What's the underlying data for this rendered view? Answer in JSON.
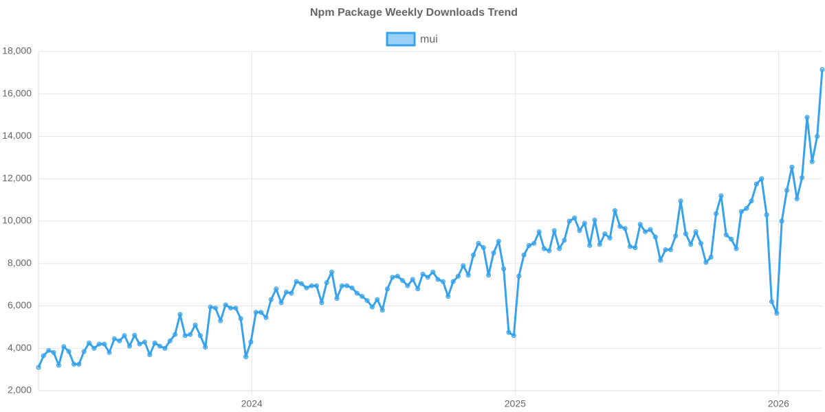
{
  "chart_data": {
    "type": "line",
    "title": "Npm Package Weekly Downloads Trend",
    "x": [
      2023.19,
      2023.2092,
      2023.2284,
      2023.2476,
      2023.2668,
      2023.286,
      2023.3052,
      2023.3244,
      2023.3436,
      2023.3628,
      2023.382,
      2023.4012,
      2023.4204,
      2023.4396,
      2023.4588,
      2023.478,
      2023.4972,
      2023.5164,
      2023.5356,
      2023.5548,
      2023.574,
      2023.5932,
      2023.6124,
      2023.6316,
      2023.6508,
      2023.67,
      2023.6892,
      2023.7084,
      2023.7276,
      2023.7468,
      2023.766,
      2023.7852,
      2023.8044,
      2023.8236,
      2023.8428,
      2023.862,
      2023.8812,
      2023.9004,
      2023.9196,
      2023.9388,
      2023.958,
      2023.9772,
      2023.9964,
      2024.0156,
      2024.0348,
      2024.054,
      2024.0732,
      2024.0924,
      2024.1116,
      2024.1308,
      2024.15,
      2024.1692,
      2024.1884,
      2024.2076,
      2024.2268,
      2024.246,
      2024.2652,
      2024.2844,
      2024.3036,
      2024.3228,
      2024.342,
      2024.3612,
      2024.3804,
      2024.3996,
      2024.4188,
      2024.438,
      2024.4572,
      2024.4764,
      2024.4956,
      2024.5148,
      2024.534,
      2024.5532,
      2024.5724,
      2024.5916,
      2024.6108,
      2024.63,
      2024.6492,
      2024.6684,
      2024.6876,
      2024.7068,
      2024.726,
      2024.7452,
      2024.7644,
      2024.7836,
      2024.8028,
      2024.822,
      2024.8412,
      2024.8604,
      2024.8796,
      2024.8988,
      2024.918,
      2024.9372,
      2024.9564,
      2024.9756,
      2024.9948,
      2025.014,
      2025.0332,
      2025.0524,
      2025.0716,
      2025.0908,
      2025.11,
      2025.1292,
      2025.1484,
      2025.1676,
      2025.1868,
      2025.206,
      2025.2252,
      2025.2444,
      2025.2636,
      2025.2828,
      2025.302,
      2025.3212,
      2025.3404,
      2025.3596,
      2025.3788,
      2025.398,
      2025.4172,
      2025.4364,
      2025.4556,
      2025.4748,
      2025.494,
      2025.5132,
      2025.5324,
      2025.5516,
      2025.5708,
      2025.59,
      2025.6092,
      2025.6284,
      2025.6476,
      2025.6668,
      2025.686,
      2025.7052,
      2025.7244,
      2025.7436,
      2025.7628,
      2025.782,
      2025.8012,
      2025.8204,
      2025.8396,
      2025.8588,
      2025.878,
      2025.8972,
      2025.9164,
      2025.9356,
      2025.9548,
      2025.974,
      2025.9932,
      2026.0124,
      2026.0316,
      2026.0508,
      2026.07,
      2026.0892,
      2026.1084,
      2026.1276,
      2026.1468,
      2026.166
    ],
    "series": [
      {
        "name": "mui",
        "color": "#36a2eb",
        "values": [
          3100,
          3650,
          3900,
          3800,
          3200,
          4080,
          3850,
          3250,
          3250,
          3850,
          4250,
          4000,
          4200,
          4200,
          3800,
          4450,
          4350,
          4600,
          4100,
          4620,
          4200,
          4300,
          3700,
          4250,
          4100,
          4000,
          4350,
          4650,
          5600,
          4600,
          4650,
          5100,
          4600,
          4050,
          5950,
          5900,
          5300,
          6050,
          5900,
          5900,
          5400,
          3600,
          4300,
          5700,
          5700,
          5450,
          6300,
          6800,
          6150,
          6650,
          6600,
          7150,
          7050,
          6850,
          6950,
          6950,
          6150,
          7100,
          7600,
          6350,
          6950,
          6950,
          6850,
          6600,
          6450,
          6250,
          5950,
          6300,
          5800,
          6800,
          7350,
          7400,
          7200,
          6950,
          7250,
          6800,
          7500,
          7350,
          7600,
          7250,
          7150,
          6450,
          7150,
          7400,
          7900,
          7450,
          8400,
          8950,
          8750,
          7450,
          8500,
          9050,
          7750,
          4750,
          4600,
          7400,
          8400,
          8850,
          8950,
          9500,
          8700,
          8600,
          9550,
          8700,
          9100,
          10000,
          10150,
          9550,
          9900,
          8850,
          10050,
          8900,
          9400,
          9200,
          10500,
          9750,
          9650,
          8800,
          8750,
          9850,
          9500,
          9600,
          9250,
          8150,
          8650,
          8650,
          9300,
          10950,
          9400,
          8900,
          9500,
          8950,
          8050,
          8300,
          10350,
          11200,
          9350,
          9150,
          8700,
          10450,
          10600,
          10950,
          11750,
          12000,
          10300,
          6200,
          5650,
          10000,
          11450,
          12550,
          11050,
          12050,
          14900,
          12800,
          14000,
          17150
        ]
      }
    ],
    "xlim": [
      2023.19,
      2026.166
    ],
    "xticks": [
      2024,
      2025,
      2026
    ],
    "ylim": [
      2000,
      18000
    ],
    "yticks": [
      {
        "value": 2000,
        "label": "2,000"
      },
      {
        "value": 4000,
        "label": "4,000"
      },
      {
        "value": 6000,
        "label": "6,000"
      },
      {
        "value": 8000,
        "label": "8,000"
      },
      {
        "value": 10000,
        "label": "10,000"
      },
      {
        "value": 12000,
        "label": "12,000"
      },
      {
        "value": 14000,
        "label": "14,000"
      },
      {
        "value": 16000,
        "label": "16,000"
      },
      {
        "value": 18000,
        "label": "18,000"
      }
    ],
    "grid": true,
    "legend": "top"
  }
}
